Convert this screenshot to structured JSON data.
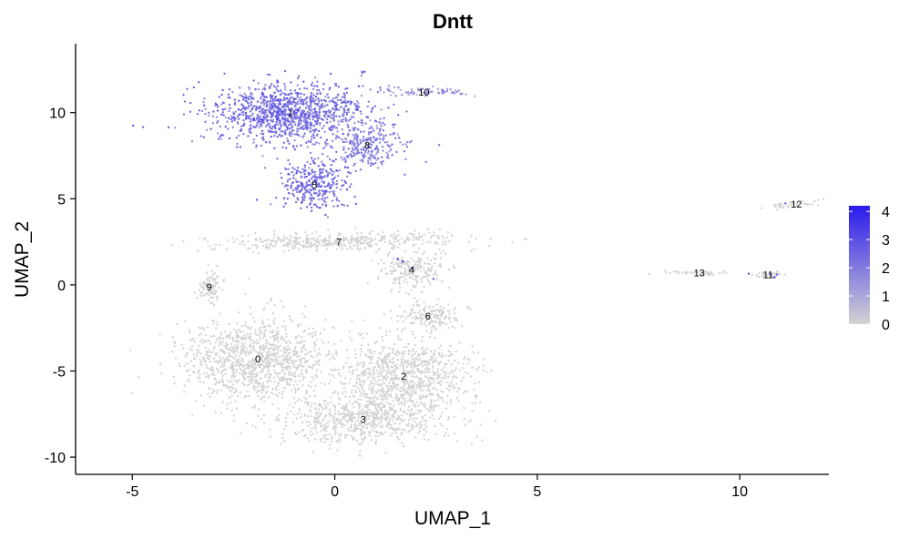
{
  "chart_data": {
    "type": "scatter",
    "title": "Dntt",
    "xlabel": "UMAP_1",
    "ylabel": "UMAP_2",
    "xlim": [
      -6.4,
      12.2
    ],
    "ylim": [
      -11.0,
      14.0
    ],
    "x_ticks": [
      -5,
      0,
      5,
      10
    ],
    "x_tick_labels": [
      "-5",
      "0",
      "5",
      "10"
    ],
    "y_ticks": [
      -10,
      -5,
      0,
      5,
      10
    ],
    "y_tick_labels": [
      "-10",
      "-5",
      "0",
      "5",
      "10"
    ],
    "grid": false,
    "legend": {
      "placement": "right",
      "type": "colorbar",
      "min": 0,
      "max": 4.2,
      "ticks": [
        0,
        1,
        2,
        3,
        4
      ],
      "tick_labels": [
        "0",
        "1",
        "2",
        "3",
        "4"
      ],
      "low_color": "#d3d3d3",
      "high_color": "#2a1aed"
    },
    "clusters": [
      {
        "label": "0",
        "x": -1.9,
        "y": -4.3,
        "expression": 0.0
      },
      {
        "label": "1",
        "x": -1.1,
        "y": 10.0,
        "expression": 2.6
      },
      {
        "label": "2",
        "x": 1.7,
        "y": -5.3,
        "expression": 0.0
      },
      {
        "label": "3",
        "x": 0.7,
        "y": -7.8,
        "expression": 0.0
      },
      {
        "label": "4",
        "x": 1.9,
        "y": 0.9,
        "expression": 0.1
      },
      {
        "label": "5",
        "x": -0.5,
        "y": 5.8,
        "expression": 2.6
      },
      {
        "label": "6",
        "x": 2.3,
        "y": -1.8,
        "expression": 0.1
      },
      {
        "label": "7",
        "x": 0.1,
        "y": 2.5,
        "expression": 0.0
      },
      {
        "label": "8",
        "x": 0.8,
        "y": 8.1,
        "expression": 2.2
      },
      {
        "label": "9",
        "x": -3.1,
        "y": -0.1,
        "expression": 0.0
      },
      {
        "label": "10",
        "x": 2.2,
        "y": 11.2,
        "expression": 1.8
      },
      {
        "label": "11",
        "x": 10.7,
        "y": 0.6,
        "expression": 0.6
      },
      {
        "label": "12",
        "x": 11.4,
        "y": 4.7,
        "expression": 0.2
      },
      {
        "label": "13",
        "x": 9.0,
        "y": 0.7,
        "expression": 0.0
      }
    ]
  }
}
